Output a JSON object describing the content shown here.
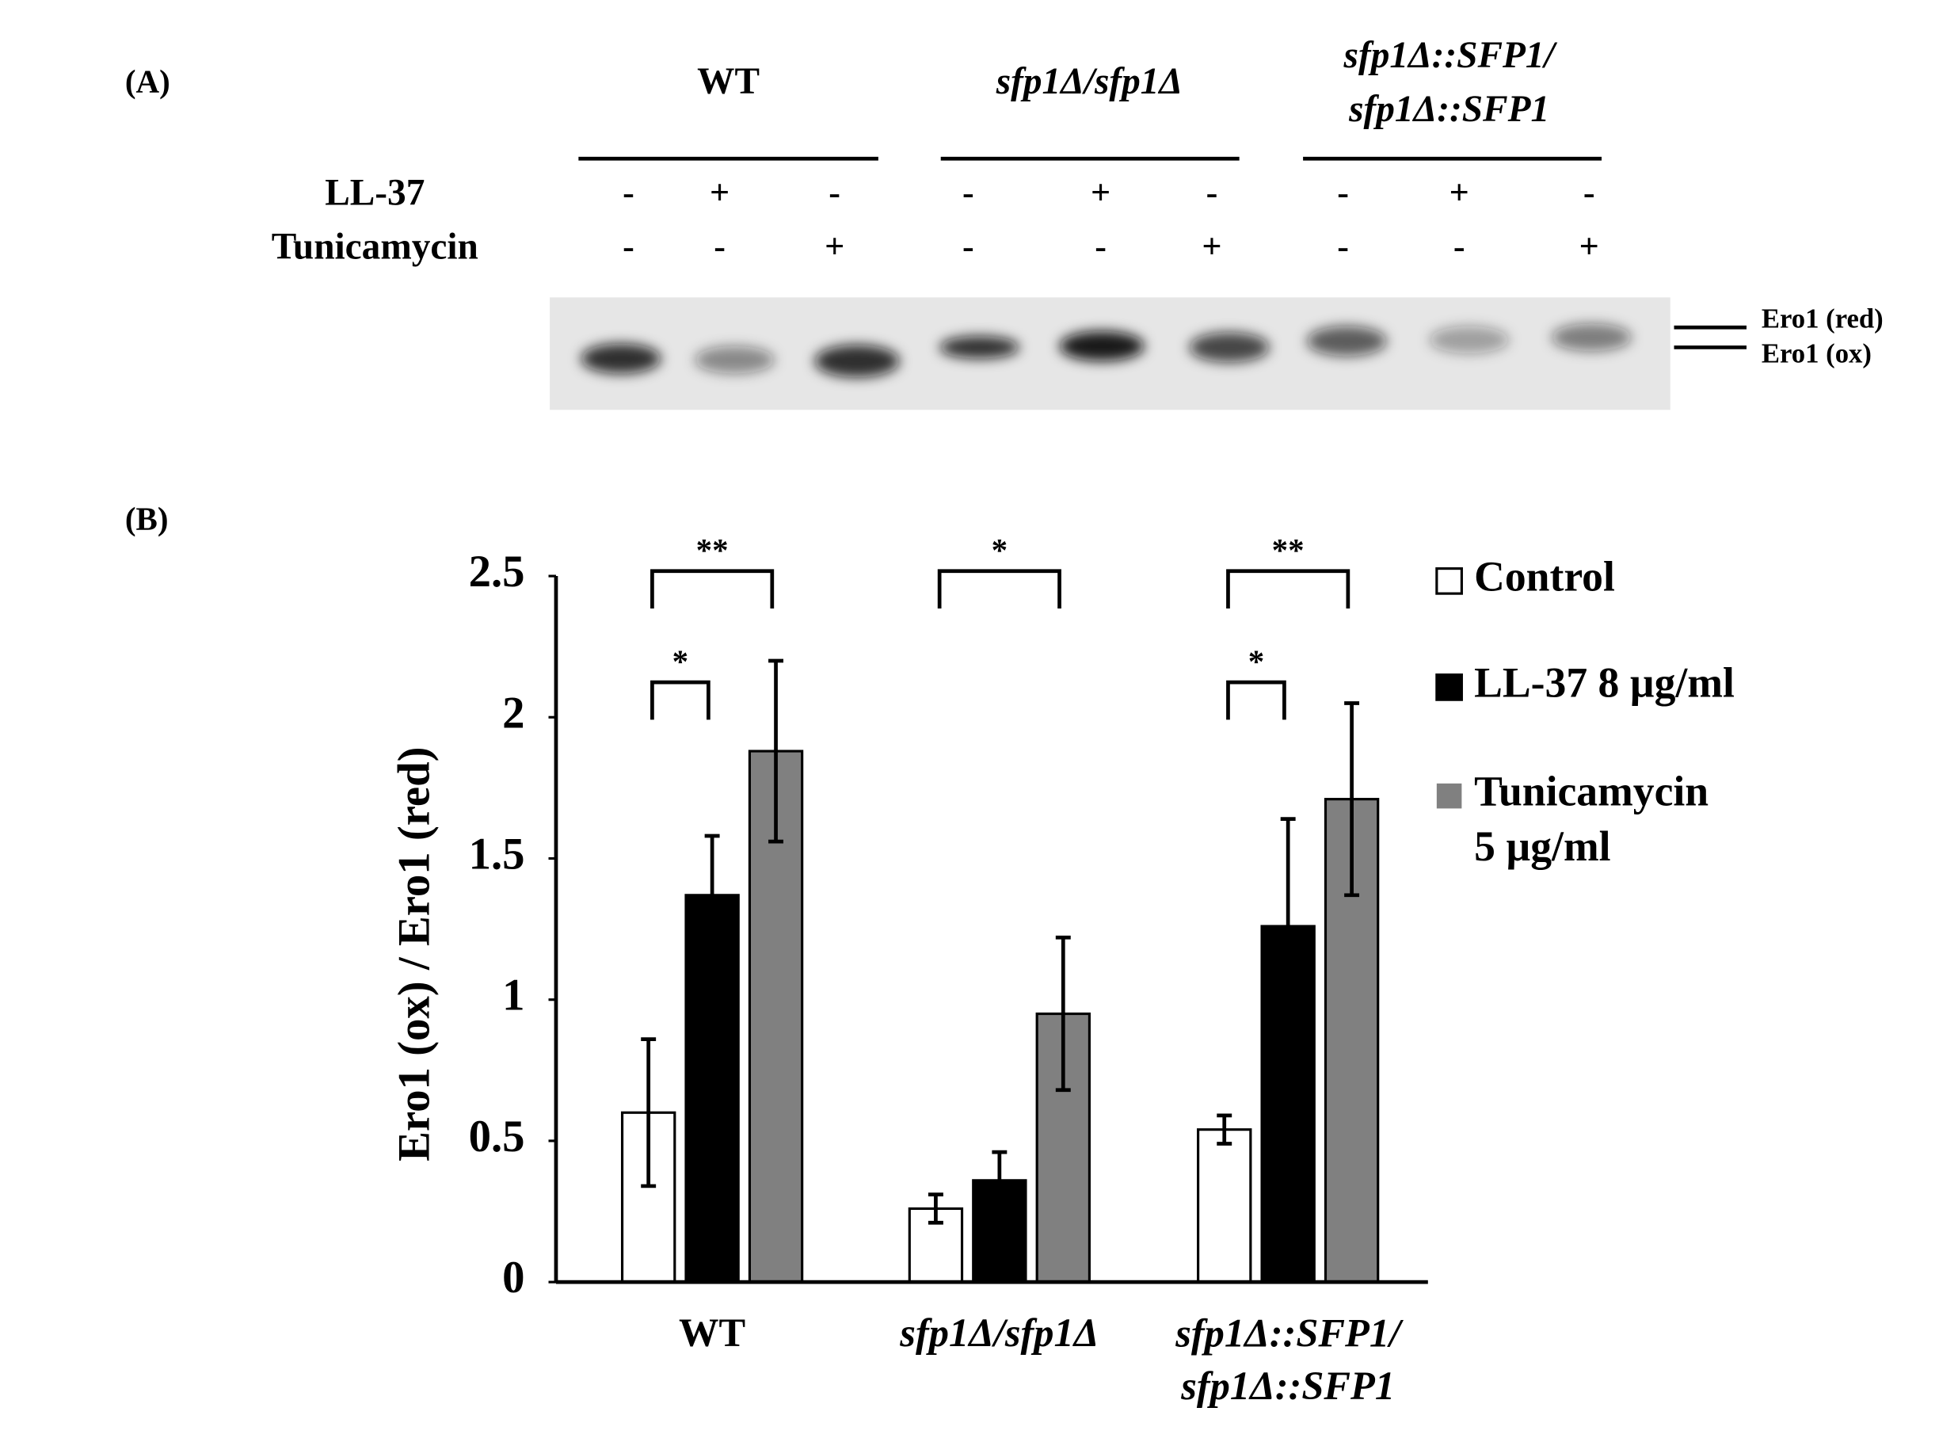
{
  "blot": {
    "panel_label": "(A)",
    "strains": [
      "WT",
      "sfp1Δ/sfp1Δ",
      "sfp1Δ::SFP1/\nsfp1Δ::SFP1"
    ],
    "treatments": [
      {
        "name": "LL-37",
        "signs": [
          "-",
          "+",
          "-",
          "-",
          "+",
          "-",
          "-",
          "+",
          "-"
        ]
      },
      {
        "name": "Tunicamycin",
        "signs": [
          "-",
          "-",
          "+",
          "-",
          "-",
          "+",
          "-",
          "-",
          "+"
        ]
      }
    ],
    "bands": [
      "Ero1 (red)",
      "Ero1 (ox)"
    ]
  },
  "chart_data": {
    "type": "bar",
    "panel_label": "(B)",
    "ylabel": "Ero1 (ox) / Ero1 (red)",
    "categories": [
      "WT",
      "sfp1Δ/sfp1Δ",
      "sfp1Δ::SFP1/\nsfp1Δ::SFP1"
    ],
    "series": [
      {
        "name": "Control",
        "color": "#ffffff",
        "values": [
          0.6,
          0.26,
          0.54
        ],
        "errors": [
          0.26,
          0.05,
          0.05
        ]
      },
      {
        "name": "LL-37  8 µg/ml",
        "color": "#000000",
        "values": [
          1.37,
          0.36,
          1.26
        ],
        "errors": [
          0.21,
          0.1,
          0.38
        ]
      },
      {
        "name": "Tunicamycin\n5 µg/ml",
        "color": "#808080",
        "values": [
          1.88,
          0.95,
          1.71
        ],
        "errors": [
          0.32,
          0.27,
          0.34
        ]
      }
    ],
    "ylim": [
      0,
      2.5
    ],
    "yticks": [
      0,
      0.5,
      1,
      1.5,
      2,
      2.5
    ],
    "annotations": [
      "**",
      "*",
      "*",
      "**",
      "*"
    ]
  }
}
